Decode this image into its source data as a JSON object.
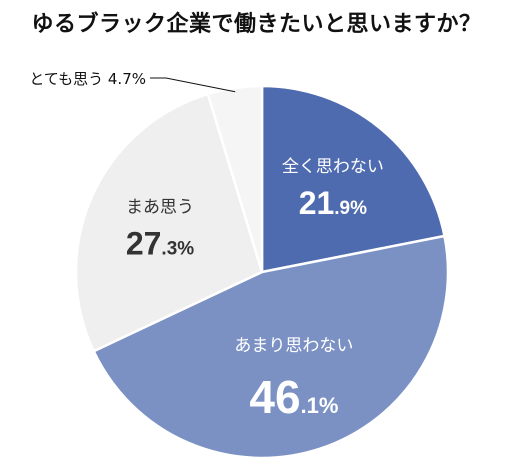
{
  "title": "ゆるブラック企業で働きたいと思いますか？",
  "colors": {
    "series_dark": "#4f6bb0",
    "series_mid": "#7b91c4",
    "series_light": "#efefef",
    "series_lighter": "#f5f5f5",
    "label_dark": "#333333",
    "label_light": "#ffffff"
  },
  "chart_data": {
    "type": "pie",
    "title": "ゆるブラック企業で働きたいと思いますか？",
    "slices": [
      {
        "name": "全く思わない",
        "value": 21.9,
        "int_part": "21",
        "dec_part": ".9%",
        "color": "#4f6bb0",
        "text_color": "#ffffff"
      },
      {
        "name": "あまり思わない",
        "value": 46.1,
        "int_part": "46",
        "dec_part": ".1%",
        "color": "#7b91c4",
        "text_color": "#ffffff"
      },
      {
        "name": "まあ思う",
        "value": 27.3,
        "int_part": "27",
        "dec_part": ".3%",
        "color": "#efefef",
        "text_color": "#333333"
      },
      {
        "name": "とても思う",
        "value": 4.7,
        "outside_label": "とても思う 4.7%",
        "color": "#f5f5f5",
        "text_color": "#111111"
      }
    ]
  }
}
